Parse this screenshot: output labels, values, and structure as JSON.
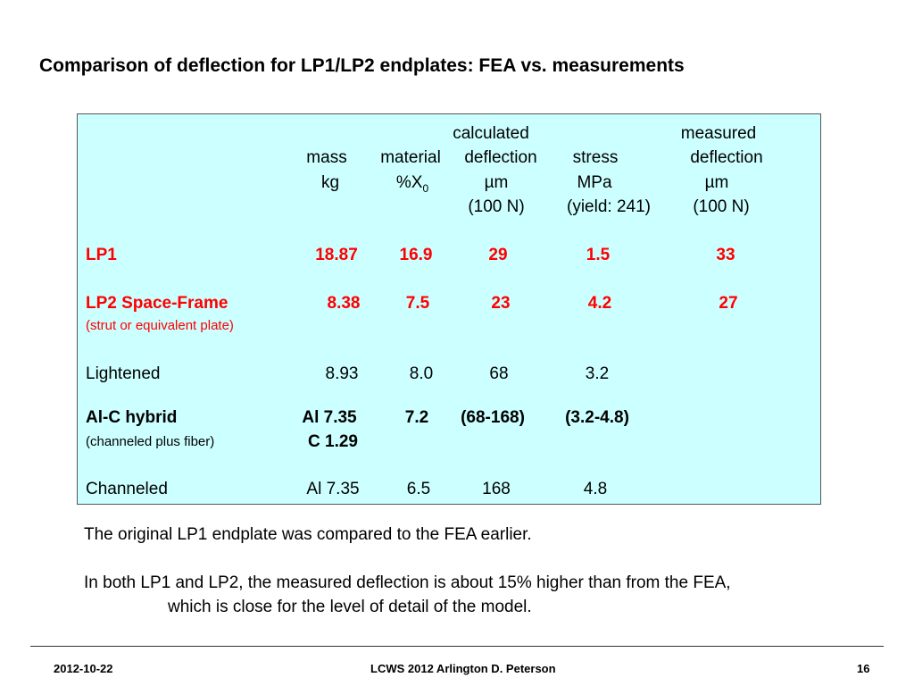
{
  "title": "Comparison of deflection for LP1/LP2 endplates: FEA vs. measurements",
  "table": {
    "headers": {
      "mass": [
        "mass",
        "kg"
      ],
      "material": [
        "material",
        "%X",
        "0"
      ],
      "calc_deflection": [
        "calculated",
        "deflection",
        "µm",
        "(100 N)"
      ],
      "stress": [
        "stress",
        "MPa",
        "(yield: 241)"
      ],
      "meas_deflection": [
        "measured",
        "deflection",
        "µm",
        "(100 N)"
      ]
    },
    "rows": {
      "lp1": {
        "label": "LP1",
        "mass": "18.87",
        "material": "16.9",
        "calc_deflection": "29",
        "stress": "1.5",
        "meas_deflection": "33"
      },
      "lp2": {
        "label": "LP2 Space-Frame",
        "note": "(strut or equivalent plate)",
        "mass": "8.38",
        "material": "7.5",
        "calc_deflection": "23",
        "stress": "4.2",
        "meas_deflection": "27"
      },
      "lightened": {
        "label": "Lightened",
        "mass": "8.93",
        "material": "8.0",
        "calc_deflection": "68",
        "stress": "3.2"
      },
      "hybrid": {
        "label": "Al-C hybrid",
        "note": "(channeled plus fiber)",
        "mass": "Al 7.35",
        "mass2": "C 1.29",
        "material": "7.2",
        "calc_deflection": "(68-168)",
        "stress": "(3.2-4.8)"
      },
      "channeled": {
        "label": "Channeled",
        "mass": "Al 7.35",
        "material": "6.5",
        "calc_deflection": "168",
        "stress": "4.8"
      }
    }
  },
  "body": {
    "line1": "The original LP1 endplate was compared to the FEA earlier.",
    "line2a": "In both LP1 and LP2, the measured deflection is about 15% higher than from the FEA,",
    "line2b": "which is close for the level of detail of the model."
  },
  "footer": {
    "date": "2012-10-22",
    "center": "LCWS 2012 Arlington D. Peterson",
    "page": "16"
  }
}
